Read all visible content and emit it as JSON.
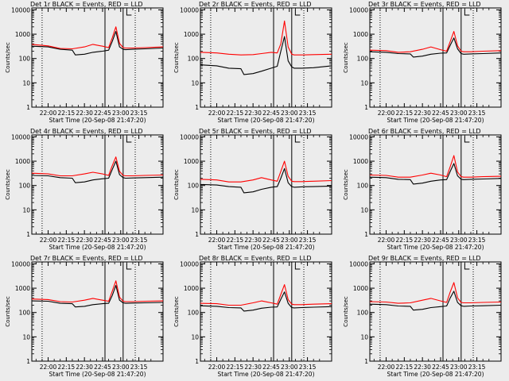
{
  "chart_data": [
    {
      "type": "line",
      "title": "Det 1r BLACK = Events, RED = LLD",
      "ylabel": "Counts/sec",
      "xlabel": "Start Time (20-Sep-08 21:47:20)",
      "x_ticks": [
        "22:00",
        "22:15",
        "22:30",
        "22:45",
        "23:00",
        "23:15"
      ],
      "y_ticks": [
        "1",
        "10",
        "100",
        "1000",
        "10000"
      ],
      "xlim_minutes": [
        -13.5,
        95
      ],
      "ylim": [
        1,
        12000
      ],
      "y_scale": "log",
      "series": [
        {
          "name": "Events",
          "color": "#000000",
          "x": [
            -13.5,
            0,
            10,
            20,
            22.5,
            30,
            37,
            45,
            50,
            53,
            56,
            59,
            62,
            64,
            70,
            80,
            95
          ],
          "y": [
            320,
            300,
            240,
            220,
            140,
            150,
            180,
            200,
            220,
            500,
            1300,
            300,
            240,
            230,
            240,
            250,
            270
          ]
        },
        {
          "name": "LLD",
          "color": "#ff0000",
          "x": [
            -13.5,
            0,
            10,
            20,
            30,
            37,
            45,
            50,
            53,
            56,
            59,
            62,
            64,
            70,
            80,
            95
          ],
          "y": [
            380,
            330,
            260,
            250,
            300,
            380,
            320,
            280,
            700,
            2000,
            420,
            280,
            270,
            270,
            280,
            300
          ]
        }
      ]
    },
    {
      "type": "line",
      "title": "Det 2r BLACK = Events, RED = LLD",
      "ylabel": "Counts/sec",
      "xlabel": "Start Time (20-Sep-08 21:47:20)",
      "x_ticks": [
        "22:00",
        "22:15",
        "22:30",
        "22:45",
        "23:00",
        "23:15"
      ],
      "y_ticks": [
        "1",
        "10",
        "100",
        "1000",
        "10000"
      ],
      "xlim_minutes": [
        -13.5,
        95
      ],
      "ylim": [
        1,
        12000
      ],
      "y_scale": "log",
      "series": [
        {
          "name": "Events",
          "color": "#000000",
          "x": [
            -13.5,
            0,
            10,
            20,
            22.5,
            30,
            37,
            45,
            50,
            53,
            56,
            59,
            62,
            64,
            70,
            80,
            95
          ],
          "y": [
            55,
            50,
            40,
            38,
            22,
            24,
            30,
            40,
            48,
            200,
            800,
            80,
            45,
            40,
            40,
            42,
            50
          ]
        },
        {
          "name": "LLD",
          "color": "#ff0000",
          "x": [
            -13.5,
            0,
            10,
            20,
            30,
            37,
            45,
            50,
            53,
            56,
            59,
            62,
            64,
            70,
            80,
            95
          ],
          "y": [
            180,
            170,
            150,
            140,
            145,
            160,
            180,
            170,
            400,
            3500,
            300,
            150,
            140,
            140,
            145,
            150
          ]
        }
      ]
    },
    {
      "type": "line",
      "title": "Det 3r BLACK = Events, RED = LLD",
      "ylabel": "Counts/sec",
      "xlabel": "Start Time (20-Sep-08 21:47:20)",
      "x_ticks": [
        "22:00",
        "22:15",
        "22:30",
        "22:45",
        "23:00",
        "23:15"
      ],
      "y_ticks": [
        "1",
        "10",
        "100",
        "1000",
        "10000"
      ],
      "xlim_minutes": [
        -13.5,
        95
      ],
      "ylim": [
        1,
        12000
      ],
      "y_scale": "log",
      "series": [
        {
          "name": "Events",
          "color": "#000000",
          "x": [
            -13.5,
            0,
            10,
            20,
            22.5,
            30,
            37,
            45,
            50,
            53,
            56,
            59,
            62,
            64,
            70,
            80,
            95
          ],
          "y": [
            190,
            180,
            160,
            155,
            115,
            125,
            150,
            165,
            170,
            350,
            700,
            250,
            160,
            150,
            155,
            160,
            170
          ]
        },
        {
          "name": "LLD",
          "color": "#ff0000",
          "x": [
            -13.5,
            0,
            10,
            20,
            30,
            37,
            45,
            50,
            53,
            56,
            59,
            62,
            64,
            70,
            80,
            95
          ],
          "y": [
            220,
            210,
            180,
            190,
            240,
            300,
            230,
            200,
            500,
            1300,
            330,
            200,
            190,
            190,
            200,
            210
          ]
        }
      ]
    },
    {
      "type": "line",
      "title": "Det 4r BLACK = Events, RED = LLD",
      "ylabel": "Counts/sec",
      "xlabel": "Start Time (20-Sep-08 21:47:20)",
      "x_ticks": [
        "22:00",
        "22:15",
        "22:30",
        "22:45",
        "23:00",
        "23:15"
      ],
      "y_ticks": [
        "1",
        "10",
        "100",
        "1000",
        "10000"
      ],
      "xlim_minutes": [
        -13.5,
        95
      ],
      "ylim": [
        1,
        12000
      ],
      "y_scale": "log",
      "series": [
        {
          "name": "Events",
          "color": "#000000",
          "x": [
            -13.5,
            0,
            10,
            20,
            22.5,
            30,
            37,
            45,
            50,
            53,
            56,
            59,
            62,
            64,
            70,
            80,
            95
          ],
          "y": [
            260,
            250,
            210,
            200,
            130,
            140,
            170,
            190,
            200,
            450,
            1000,
            280,
            210,
            200,
            205,
            210,
            220
          ]
        },
        {
          "name": "LLD",
          "color": "#ff0000",
          "x": [
            -13.5,
            0,
            10,
            20,
            30,
            37,
            45,
            50,
            53,
            56,
            59,
            62,
            64,
            70,
            80,
            95
          ],
          "y": [
            320,
            300,
            250,
            250,
            300,
            350,
            300,
            260,
            650,
            1500,
            380,
            260,
            250,
            250,
            260,
            270
          ]
        }
      ]
    },
    {
      "type": "line",
      "title": "Det 5r BLACK = Events, RED = LLD",
      "ylabel": "Counts/sec",
      "xlabel": "Start Time (20-Sep-08 21:47:20)",
      "x_ticks": [
        "22:00",
        "22:15",
        "22:30",
        "22:45",
        "23:00",
        "23:15"
      ],
      "y_ticks": [
        "1",
        "10",
        "100",
        "1000",
        "10000"
      ],
      "xlim_minutes": [
        -13.5,
        95
      ],
      "ylim": [
        1,
        12000
      ],
      "y_scale": "log",
      "series": [
        {
          "name": "Events",
          "color": "#000000",
          "x": [
            -13.5,
            0,
            10,
            20,
            22.5,
            30,
            37,
            45,
            50,
            53,
            56,
            59,
            62,
            64,
            70,
            80,
            95
          ],
          "y": [
            110,
            105,
            90,
            85,
            50,
            55,
            70,
            85,
            90,
            200,
            500,
            130,
            90,
            85,
            88,
            90,
            95
          ]
        },
        {
          "name": "LLD",
          "color": "#ff0000",
          "x": [
            -13.5,
            0,
            10,
            20,
            30,
            37,
            45,
            50,
            53,
            56,
            59,
            62,
            64,
            70,
            80,
            95
          ],
          "y": [
            180,
            170,
            140,
            140,
            170,
            210,
            170,
            150,
            380,
            1000,
            240,
            150,
            145,
            145,
            150,
            160
          ]
        }
      ]
    },
    {
      "type": "line",
      "title": "Det 6r BLACK = Events, RED = LLD",
      "ylabel": "Counts/sec",
      "xlabel": "Start Time (20-Sep-08 21:47:20)",
      "x_ticks": [
        "22:00",
        "22:15",
        "22:30",
        "22:45",
        "23:00",
        "23:15"
      ],
      "y_ticks": [
        "1",
        "10",
        "100",
        "1000",
        "10000"
      ],
      "xlim_minutes": [
        -13.5,
        95
      ],
      "ylim": [
        1,
        12000
      ],
      "y_scale": "log",
      "series": [
        {
          "name": "Events",
          "color": "#000000",
          "x": [
            -13.5,
            0,
            10,
            20,
            22.5,
            30,
            37,
            45,
            50,
            53,
            56,
            59,
            62,
            64,
            70,
            80,
            95
          ],
          "y": [
            220,
            210,
            180,
            175,
            115,
            125,
            150,
            170,
            175,
            380,
            800,
            250,
            180,
            175,
            180,
            185,
            195
          ]
        },
        {
          "name": "LLD",
          "color": "#ff0000",
          "x": [
            -13.5,
            0,
            10,
            20,
            30,
            37,
            45,
            50,
            53,
            56,
            59,
            62,
            64,
            70,
            80,
            95
          ],
          "y": [
            270,
            260,
            220,
            220,
            270,
            320,
            270,
            230,
            600,
            1700,
            360,
            230,
            220,
            220,
            230,
            240
          ]
        }
      ]
    },
    {
      "type": "line",
      "title": "Det 7r BLACK = Events, RED = LLD",
      "ylabel": "Counts/sec",
      "xlabel": "Start Time (20-Sep-08 21:47:20)",
      "x_ticks": [
        "22:00",
        "22:15",
        "22:30",
        "22:45",
        "23:00",
        "23:15"
      ],
      "y_ticks": [
        "1",
        "10",
        "100",
        "1000",
        "10000"
      ],
      "xlim_minutes": [
        -13.5,
        95
      ],
      "ylim": [
        1,
        12000
      ],
      "y_scale": "log",
      "series": [
        {
          "name": "Events",
          "color": "#000000",
          "x": [
            -13.5,
            0,
            10,
            20,
            22.5,
            30,
            37,
            45,
            50,
            53,
            56,
            59,
            62,
            64,
            70,
            80,
            95
          ],
          "y": [
            300,
            290,
            240,
            230,
            170,
            180,
            210,
            230,
            240,
            500,
            1300,
            320,
            250,
            240,
            245,
            250,
            260
          ]
        },
        {
          "name": "LLD",
          "color": "#ff0000",
          "x": [
            -13.5,
            0,
            10,
            20,
            30,
            37,
            45,
            50,
            53,
            56,
            59,
            62,
            64,
            70,
            80,
            95
          ],
          "y": [
            360,
            340,
            280,
            270,
            320,
            380,
            320,
            290,
            750,
            2000,
            430,
            290,
            280,
            280,
            290,
            300
          ]
        }
      ]
    },
    {
      "type": "line",
      "title": "Det 8r BLACK = Events, RED = LLD",
      "ylabel": "Counts/sec",
      "xlabel": "Start Time (20-Sep-08 21:47:20)",
      "x_ticks": [
        "22:00",
        "22:15",
        "22:30",
        "22:45",
        "23:00",
        "23:15"
      ],
      "y_ticks": [
        "1",
        "10",
        "100",
        "1000",
        "10000"
      ],
      "xlim_minutes": [
        -13.5,
        95
      ],
      "ylim": [
        1,
        12000
      ],
      "y_scale": "log",
      "series": [
        {
          "name": "Events",
          "color": "#000000",
          "x": [
            -13.5,
            0,
            10,
            20,
            22.5,
            30,
            37,
            45,
            50,
            53,
            56,
            59,
            62,
            64,
            70,
            80,
            95
          ],
          "y": [
            190,
            180,
            160,
            155,
            115,
            125,
            150,
            165,
            170,
            350,
            700,
            240,
            160,
            155,
            160,
            165,
            175
          ]
        },
        {
          "name": "LLD",
          "color": "#ff0000",
          "x": [
            -13.5,
            0,
            10,
            20,
            30,
            37,
            45,
            50,
            53,
            56,
            59,
            62,
            64,
            70,
            80,
            95
          ],
          "y": [
            240,
            230,
            200,
            200,
            250,
            300,
            250,
            220,
            550,
            1400,
            340,
            220,
            210,
            210,
            220,
            230
          ]
        }
      ]
    },
    {
      "type": "line",
      "title": "Det 9r BLACK = Events, RED = LLD",
      "ylabel": "Counts/sec",
      "xlabel": "Start Time (20-Sep-08 21:47:20)",
      "x_ticks": [
        "22:00",
        "22:15",
        "22:30",
        "22:45",
        "23:00",
        "23:15"
      ],
      "y_ticks": [
        "1",
        "10",
        "100",
        "1000",
        "10000"
      ],
      "xlim_minutes": [
        -13.5,
        95
      ],
      "ylim": [
        1,
        12000
      ],
      "y_scale": "log",
      "series": [
        {
          "name": "Events",
          "color": "#000000",
          "x": [
            -13.5,
            0,
            10,
            20,
            22.5,
            30,
            37,
            45,
            50,
            53,
            56,
            59,
            62,
            64,
            70,
            80,
            95
          ],
          "y": [
            220,
            210,
            185,
            180,
            125,
            135,
            160,
            175,
            185,
            400,
            750,
            260,
            190,
            180,
            185,
            190,
            200
          ]
        },
        {
          "name": "LLD",
          "color": "#ff0000",
          "x": [
            -13.5,
            0,
            10,
            20,
            30,
            37,
            45,
            50,
            53,
            56,
            59,
            62,
            64,
            70,
            80,
            95
          ],
          "y": [
            280,
            270,
            240,
            250,
            320,
            380,
            300,
            260,
            700,
            1700,
            400,
            260,
            250,
            250,
            260,
            270
          ]
        }
      ]
    }
  ]
}
